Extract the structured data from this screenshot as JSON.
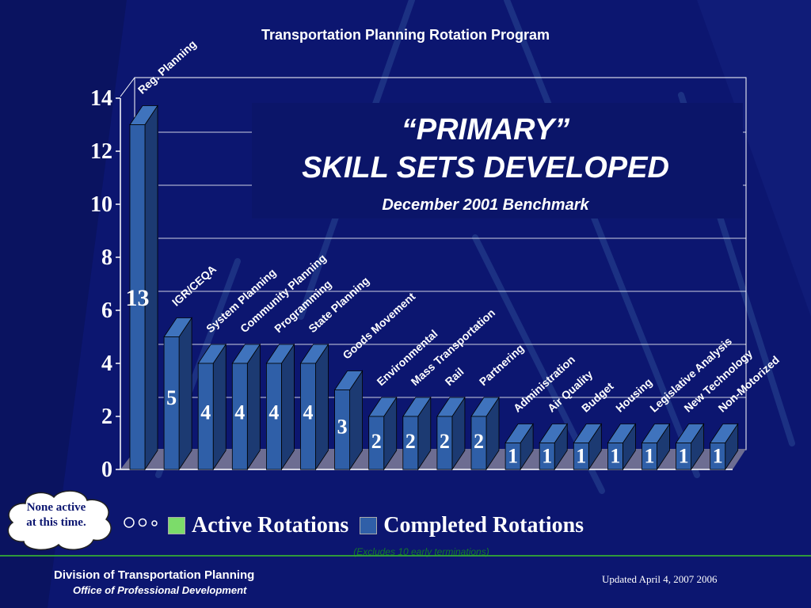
{
  "slide": {
    "top_title": "Transportation Planning Rotation Program",
    "primary_title_line1": "“PRIMARY”",
    "primary_title_line2": "SKILL SETS DEVELOPED",
    "benchmark": "December 2001 Benchmark",
    "cloud_note": "None active at this time.",
    "footnote": "(Excludes 10 early terminations)",
    "division": "Division of Transportation Planning",
    "office": "Office of Professional Development",
    "updated": "Updated  April 4, 2007 2006"
  },
  "colors": {
    "background": "#0c1670",
    "bar_front": "#2f5fa8",
    "bar_side": "#1c3a72",
    "bar_top": "#3f73bd",
    "active_rotations": "#7cdc6a",
    "floor": "#6d6d92"
  },
  "chart_data": {
    "type": "bar",
    "ylim": [
      0,
      14
    ],
    "yticks": [
      "0",
      "2",
      "4",
      "6",
      "8",
      "10",
      "12",
      "14"
    ],
    "categories": [
      "Reg. Planning",
      "IGR/CEQA",
      "System Planning",
      "Community Planning",
      "Programming",
      "State Planning",
      "Goods Movement",
      "Environmental",
      "Mass Transportation",
      "Rail",
      "Partnering",
      "Administration",
      "Air Quality",
      "Budget",
      "Housing",
      "Legislative Analysis",
      "New Technology",
      "Non-Motorized"
    ],
    "series": [
      {
        "name": "Active Rotations",
        "values": [
          0,
          0,
          0,
          0,
          0,
          0,
          0,
          0,
          0,
          0,
          0,
          0,
          0,
          0,
          0,
          0,
          0,
          0
        ]
      },
      {
        "name": "Completed Rotations",
        "values": [
          13,
          5,
          4,
          4,
          4,
          4,
          3,
          2,
          2,
          2,
          2,
          1,
          1,
          1,
          1,
          1,
          1,
          1
        ]
      }
    ],
    "legend": "bottom"
  }
}
